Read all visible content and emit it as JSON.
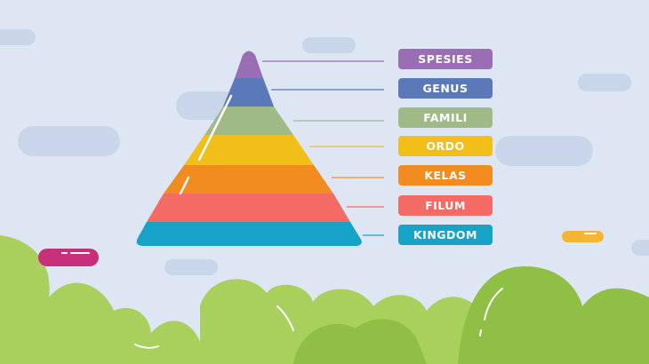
{
  "diagram": {
    "levels": [
      {
        "label": "SPESIES",
        "color": "#9b6db5"
      },
      {
        "label": "GENUS",
        "color": "#5b78b8"
      },
      {
        "label": "FAMILI",
        "color": "#9fba86"
      },
      {
        "label": "ORDO",
        "color": "#f2be1a"
      },
      {
        "label": "KELAS",
        "color": "#f28c20"
      },
      {
        "label": "FILUM",
        "color": "#f36b64"
      },
      {
        "label": "KINGDOM",
        "color": "#17a2c8"
      }
    ]
  },
  "decor": {
    "background": "#dde6f2",
    "cloud": "#c9d6ea",
    "bush_light": "#a9cf5d",
    "bush_dark": "#8fbf45",
    "pill_magenta": "#c8307c",
    "pill_orange": "#f5b533"
  }
}
